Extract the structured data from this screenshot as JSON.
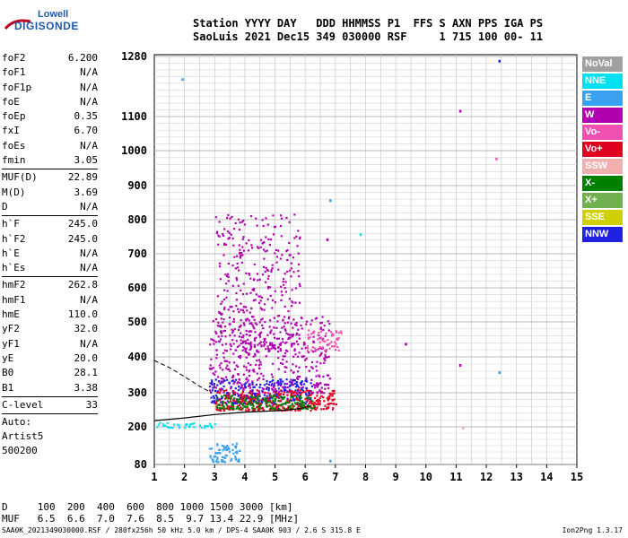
{
  "logo": {
    "top": "Lowell",
    "bottom": "DIGISONDE"
  },
  "header": {
    "line1": "Station YYYY DAY   DDD HHMMSS P1  FFS S AXN PPS IGA PS",
    "line2": "SaoLuis 2021 Dec15 349 030000 RSF     1 715 100 00- 11"
  },
  "params": [
    {
      "group": [
        {
          "name": "foF2",
          "value": "6.200"
        },
        {
          "name": "foF1",
          "value": "N/A"
        },
        {
          "name": "foF1p",
          "value": "N/A"
        },
        {
          "name": "foE",
          "value": "N/A"
        },
        {
          "name": "foEp",
          "value": "0.35"
        },
        {
          "name": "fxI",
          "value": "6.70"
        },
        {
          "name": "foEs",
          "value": "N/A"
        },
        {
          "name": "fmin",
          "value": "3.05"
        }
      ]
    },
    {
      "group": [
        {
          "name": "MUF(D)",
          "value": "22.89"
        },
        {
          "name": "M(D)",
          "value": "3.69"
        },
        {
          "name": "D",
          "value": "N/A"
        }
      ]
    },
    {
      "group": [
        {
          "name": "h`F",
          "value": "245.0"
        },
        {
          "name": "h`F2",
          "value": "245.0"
        },
        {
          "name": "h`E",
          "value": "N/A"
        },
        {
          "name": "h`Es",
          "value": "N/A"
        }
      ]
    },
    {
      "group": [
        {
          "name": "hmF2",
          "value": "262.8"
        },
        {
          "name": "hmF1",
          "value": "N/A"
        },
        {
          "name": "hmE",
          "value": "110.0"
        },
        {
          "name": "yF2",
          "value": "32.0"
        },
        {
          "name": "yF1",
          "value": "N/A"
        },
        {
          "name": "yE",
          "value": "20.0"
        },
        {
          "name": "B0",
          "value": "28.1"
        },
        {
          "name": "B1",
          "value": "3.38"
        }
      ]
    },
    {
      "group": [
        {
          "name": "C-level",
          "value": "33"
        }
      ]
    }
  ],
  "auto": [
    "Auto:",
    "Artist5",
    "500200"
  ],
  "legend": [
    {
      "label": "NoVal",
      "color": "#a0a0a0"
    },
    {
      "label": "NNE",
      "color": "#00e0f0"
    },
    {
      "label": "E",
      "color": "#3aa0f0"
    },
    {
      "label": "W",
      "color": "#b000b0"
    },
    {
      "label": "Vo-",
      "color": "#f050b0"
    },
    {
      "label": "Vo+",
      "color": "#e00020"
    },
    {
      "label": "SSW",
      "color": "#f0b0b0"
    },
    {
      "label": "X-",
      "color": "#008000"
    },
    {
      "label": "X+",
      "color": "#70b050"
    },
    {
      "label": "SSE",
      "color": "#d0d000"
    },
    {
      "label": "NNW",
      "color": "#2020e0"
    }
  ],
  "bottom": {
    "line1": "D     100  200  400  600  800 1000 1500 3000 [km]",
    "line2": "MUF   6.5  6.6  7.0  7.6  8.5  9.7 13.4 22.9 [MHz]"
  },
  "footer": {
    "left": "SAA0K_2021349030000.RSF / 280fx256h 50 kHz 5.0 km / DPS-4 SAA0K 903 / 2.6 S 315.8 E",
    "right": "Ion2Png 1.3.17"
  },
  "chart_data": {
    "type": "scatter",
    "title": "",
    "xlabel": "",
    "ylabel": "",
    "x_ticks": [
      1,
      2,
      3,
      4,
      5,
      6,
      7,
      8,
      9,
      10,
      11,
      12,
      13,
      14,
      15
    ],
    "y_ticks": [
      80,
      200,
      300,
      400,
      500,
      600,
      700,
      800,
      900,
      1000,
      1100,
      1280
    ],
    "xlim": [
      1,
      15
    ],
    "ylim": [
      80,
      1280
    ],
    "profile_curve": {
      "name": "",
      "x": [
        1.0,
        2.0,
        3.0,
        4.0,
        5.0,
        5.5,
        6.0,
        6.2
      ],
      "y": [
        218,
        226,
        236,
        243,
        247,
        250,
        256,
        262
      ]
    },
    "dashed_trace": {
      "x": [
        1.0,
        1.5,
        2.0,
        2.5,
        2.9
      ],
      "y": [
        390,
        370,
        345,
        318,
        300
      ]
    },
    "echo_clusters": [
      {
        "series": "W",
        "x_range": [
          2.8,
          6.8
        ],
        "y_range": [
          300,
          520
        ],
        "count": 420
      },
      {
        "series": "NNW",
        "x_range": [
          2.8,
          6.2
        ],
        "y_range": [
          270,
          340
        ],
        "count": 260
      },
      {
        "series": "Vo+",
        "x_range": [
          3.0,
          7.0
        ],
        "y_range": [
          250,
          310
        ],
        "count": 320
      },
      {
        "series": "X-",
        "x_range": [
          3.0,
          6.3
        ],
        "y_range": [
          255,
          295
        ],
        "count": 160
      },
      {
        "series": "W",
        "x_range": [
          3.0,
          5.8
        ],
        "y_range": [
          420,
          820
        ],
        "count": 380
      },
      {
        "series": "Vo-",
        "x_range": [
          6.0,
          7.2
        ],
        "y_range": [
          420,
          480
        ],
        "count": 60
      },
      {
        "series": "E",
        "x_range": [
          2.8,
          3.8
        ],
        "y_range": [
          90,
          150
        ],
        "count": 70
      },
      {
        "series": "NNE",
        "x_range": [
          1.0,
          3.0
        ],
        "y_range": [
          200,
          215
        ],
        "count": 40
      }
    ]
  }
}
